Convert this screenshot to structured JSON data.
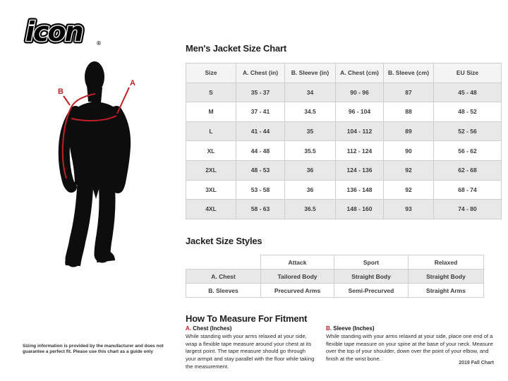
{
  "logo": {
    "text": "icon",
    "registered": "®"
  },
  "figure": {
    "label_a": "A",
    "label_b": "B"
  },
  "size_chart": {
    "title": "Men's Jacket Size Chart",
    "columns": [
      "Size",
      "A. Chest (in)",
      "B. Sleeve (in)",
      "A. Chest (cm)",
      "B. Sleeve (cm)",
      "EU Size"
    ],
    "rows": [
      [
        "S",
        "35 - 37",
        "34",
        "90 - 96",
        "87",
        "45 - 48"
      ],
      [
        "M",
        "37 - 41",
        "34.5",
        "96 - 104",
        "88",
        "48 - 52"
      ],
      [
        "L",
        "41 - 44",
        "35",
        "104 - 112",
        "89",
        "52 - 56"
      ],
      [
        "XL",
        "44 - 48",
        "35.5",
        "112 - 124",
        "90",
        "56 - 62"
      ],
      [
        "2XL",
        "48 - 53",
        "36",
        "124 - 136",
        "92",
        "62 - 68"
      ],
      [
        "3XL",
        "53 - 58",
        "36",
        "136 - 148",
        "92",
        "68 - 74"
      ],
      [
        "4XL",
        "58 - 63",
        "36.5",
        "148 - 160",
        "93",
        "74 - 80"
      ]
    ]
  },
  "styles_chart": {
    "title": "Jacket Size Styles",
    "columns": [
      "",
      "Attack",
      "Sport",
      "Relaxed"
    ],
    "rows": [
      [
        "A. Chest",
        "Tailored Body",
        "Straight Body",
        "Straight Body"
      ],
      [
        "B. Sleeves",
        "Precurved Arms",
        "Semi-Precurved",
        "Straight Arms"
      ]
    ]
  },
  "measure": {
    "title": "How To Measure For Fitment",
    "sections": [
      {
        "marker": "A.",
        "heading": "Chest (Inches)",
        "body": "While standing with your arms relaxed at your side, wrap a flexible tape measure around your chest at its largest point. The tape measure should go through your armpit and stay parallel with the floor while taking the measurement."
      },
      {
        "marker": "B.",
        "heading": "Sleeve (Inches)",
        "body": "While standing with your arms relaxed at your side, place one end of a flexible tape measure on your spine at the base of your neck. Measure over the top of your shoulder, down over the point of your elbow, and finish at the wrist bone."
      }
    ]
  },
  "footer": {
    "disclaimer": "Sizing information is provided by the manufacturer and does not guarantee a perfect fit. Please use this chart as a guide only",
    "chart_version": "2019 Fall Chart"
  },
  "colors": {
    "accent_red": "#bf2026",
    "silhouette_black": "#0d0d0d",
    "row_alt_gray": "#e8e8e8",
    "header_gray": "#f4f4f4",
    "border_gray": "#cfcfcf"
  }
}
